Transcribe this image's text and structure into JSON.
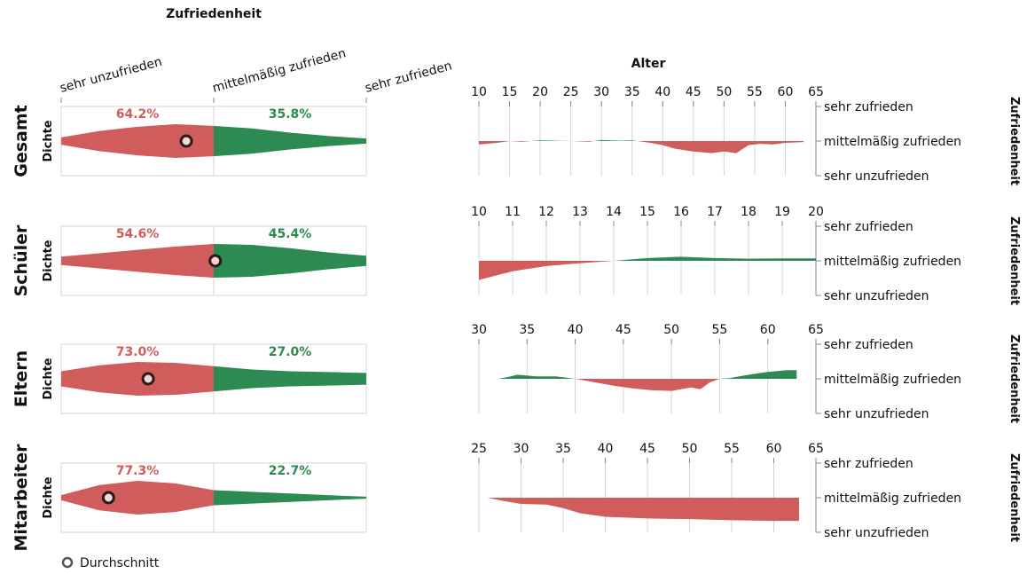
{
  "colors": {
    "negative": "#d05c5c",
    "positive": "#2c8a52",
    "grid": "#d4d4d4",
    "axis": "#888888",
    "text": "#111111"
  },
  "legend": {
    "label": "Durchschnitt",
    "icon": "circle-marker-icon"
  },
  "chart_data": {
    "type": "area",
    "density_title": "Zufriedenheit",
    "density_ylabel": "Dichte",
    "density_ticks": [
      "sehr unzufrieden",
      "mittelmäßig zufrieden",
      "sehr zufrieden"
    ],
    "age_title": "Alter",
    "age_right_label": "Zufriedenheit",
    "age_y_ticks": [
      "sehr zufrieden",
      "mittelmäßig zufrieden",
      "sehr unzufrieden"
    ],
    "groups": [
      {
        "name": "Gesamt",
        "neg_pct": "64.2%",
        "pos_pct": "35.8%",
        "mean": -0.18,
        "density_x": [
          -1,
          -0.75,
          -0.5,
          -0.25,
          0,
          0.25,
          0.5,
          0.75,
          1
        ],
        "density_y": [
          0.22,
          0.6,
          0.85,
          1.0,
          0.9,
          0.75,
          0.5,
          0.3,
          0.15
        ],
        "age_range": [
          10,
          65
        ],
        "age_ticks": [
          10,
          15,
          20,
          25,
          30,
          35,
          40,
          45,
          50,
          55,
          60,
          65
        ],
        "age_x": [
          10,
          13,
          15,
          17,
          20,
          25,
          28,
          30,
          33,
          35,
          38,
          40,
          42,
          45,
          48,
          50,
          52,
          54,
          56,
          58,
          60,
          63
        ],
        "age_y": [
          -0.1,
          -0.05,
          0.0,
          -0.02,
          0.02,
          0.0,
          -0.02,
          0.03,
          0.01,
          0.02,
          -0.05,
          -0.12,
          -0.22,
          -0.3,
          -0.35,
          -0.3,
          -0.35,
          -0.12,
          -0.08,
          -0.1,
          -0.05,
          -0.03
        ]
      },
      {
        "name": "Schüler",
        "neg_pct": "54.6%",
        "pos_pct": "45.4%",
        "mean": 0.01,
        "density_x": [
          -1,
          -0.75,
          -0.5,
          -0.25,
          0,
          0.25,
          0.5,
          0.75,
          1
        ],
        "density_y": [
          0.25,
          0.45,
          0.65,
          0.85,
          1.0,
          0.95,
          0.75,
          0.5,
          0.3
        ],
        "age_range": [
          10,
          20
        ],
        "age_ticks": [
          10,
          11,
          12,
          13,
          14,
          15,
          16,
          17,
          18,
          19,
          20
        ],
        "age_x": [
          10,
          11,
          12,
          13,
          14,
          15,
          16,
          17,
          18,
          19,
          20
        ],
        "age_y": [
          -0.55,
          -0.3,
          -0.15,
          -0.07,
          0.0,
          0.08,
          0.12,
          0.08,
          0.06,
          0.07,
          0.07
        ]
      },
      {
        "name": "Eltern",
        "neg_pct": "73.0%",
        "pos_pct": "27.0%",
        "mean": -0.43,
        "density_x": [
          -1,
          -0.75,
          -0.5,
          -0.25,
          0,
          0.25,
          0.5,
          0.75,
          1
        ],
        "density_y": [
          0.45,
          0.8,
          1.0,
          0.95,
          0.75,
          0.55,
          0.45,
          0.4,
          0.35
        ],
        "age_range": [
          30,
          65
        ],
        "age_ticks": [
          30,
          35,
          40,
          45,
          50,
          55,
          60,
          65
        ],
        "age_x": [
          32,
          33,
          34,
          36,
          38,
          40,
          42,
          44,
          46,
          48,
          50,
          52,
          53,
          54,
          55,
          56,
          58,
          60,
          62,
          63
        ],
        "age_y": [
          0.0,
          0.05,
          0.12,
          0.07,
          0.07,
          0.0,
          -0.1,
          -0.2,
          -0.28,
          -0.33,
          -0.35,
          -0.25,
          -0.3,
          -0.1,
          0.0,
          0.02,
          0.12,
          0.2,
          0.25,
          0.25
        ]
      },
      {
        "name": "Mitarbeiter",
        "neg_pct": "77.3%",
        "pos_pct": "22.7%",
        "mean": -0.69,
        "density_x": [
          -1,
          -0.75,
          -0.5,
          -0.25,
          0,
          0.25,
          0.5,
          0.75,
          1
        ],
        "density_y": [
          0.15,
          0.75,
          1.0,
          0.85,
          0.45,
          0.35,
          0.25,
          0.15,
          0.06
        ],
        "age_range": [
          25,
          65
        ],
        "age_ticks": [
          25,
          30,
          35,
          40,
          45,
          50,
          55,
          60,
          65
        ],
        "age_x": [
          26,
          28,
          30,
          33,
          35,
          37,
          40,
          45,
          50,
          55,
          60,
          63
        ],
        "age_y": [
          0.0,
          -0.1,
          -0.18,
          -0.2,
          -0.3,
          -0.45,
          -0.55,
          -0.6,
          -0.62,
          -0.65,
          -0.67,
          -0.67
        ]
      }
    ]
  }
}
